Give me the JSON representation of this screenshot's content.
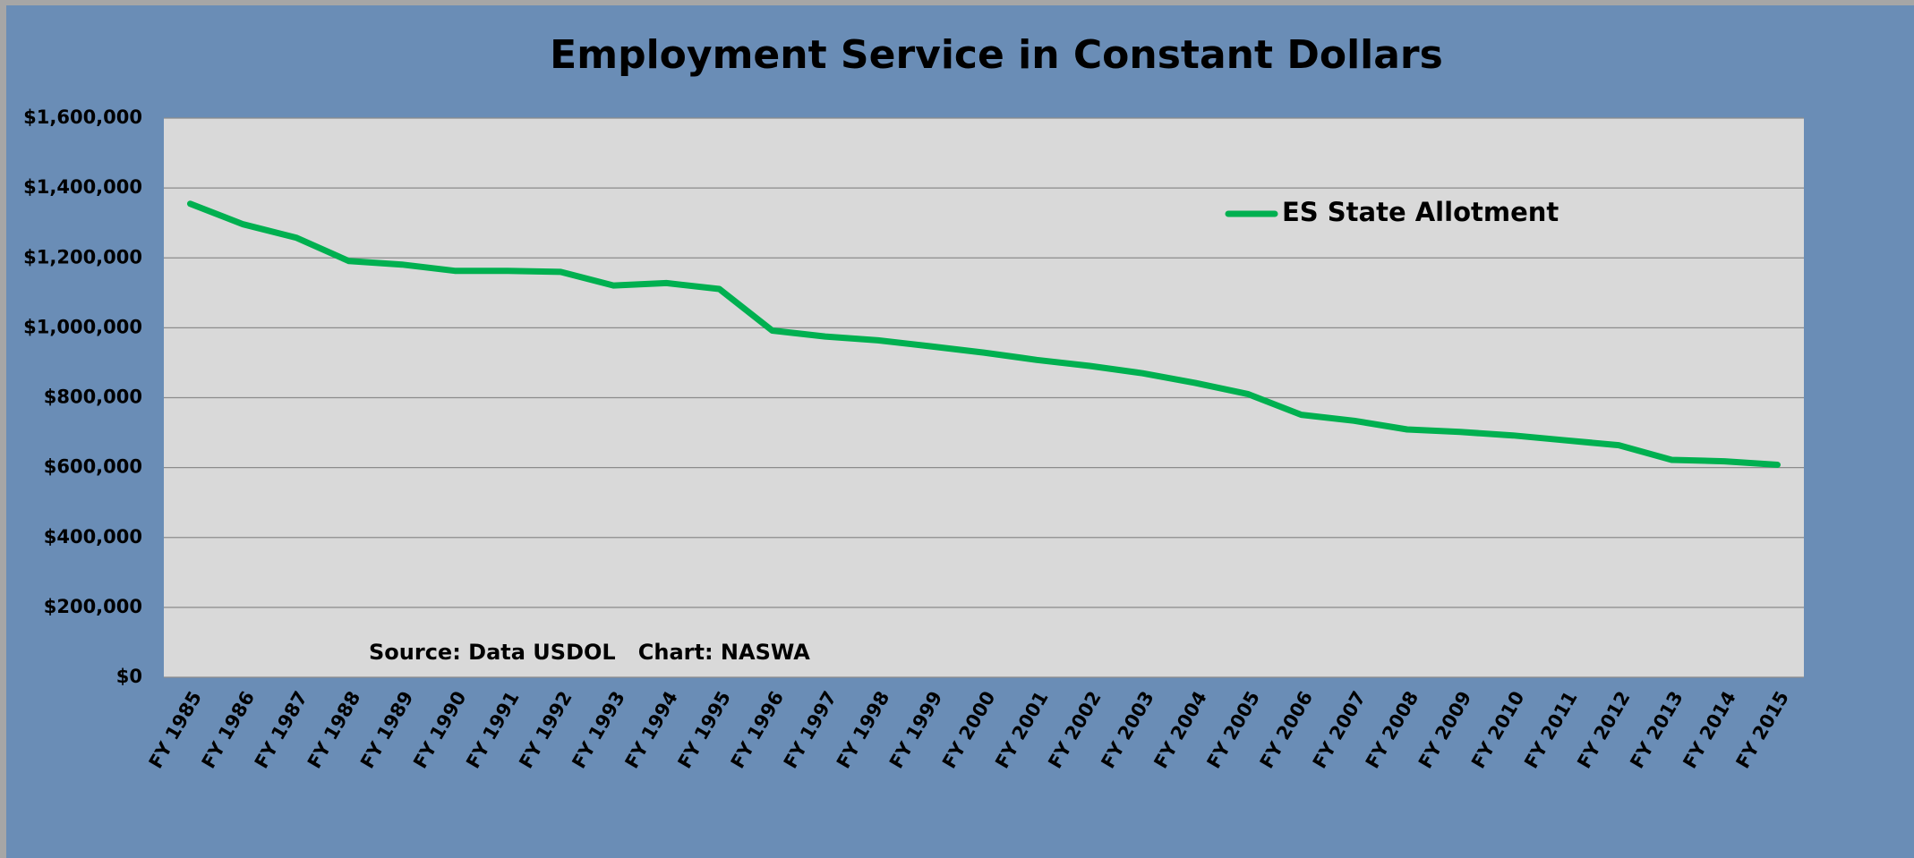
{
  "chart_data": {
    "type": "line",
    "title": "Employment Service in Constant Dollars",
    "annotation": "Source: Data USDOL   Chart: NASWA",
    "categories": [
      "FY 1985",
      "FY 1986",
      "FY 1987",
      "FY 1988",
      "FY 1989",
      "FY 1990",
      "FY 1991",
      "FY 1992",
      "FY 1993",
      "FY 1994",
      "FY 1995",
      "FY 1996",
      "FY 1997",
      "FY 1998",
      "FY 1999",
      "FY 2000",
      "FY 2001",
      "FY 2002",
      "FY 2003",
      "FY 2004",
      "FY 2005",
      "FY 2006",
      "FY 2007",
      "FY 2008",
      "FY 2009",
      "FY 2010",
      "FY 2011",
      "FY 2012",
      "FY 2013",
      "FY 2014",
      "FY 2015"
    ],
    "series": [
      {
        "name": "ES State Allotment",
        "color": "#00b050",
        "values": [
          1355000,
          1296000,
          1258000,
          1191000,
          1181000,
          1163000,
          1163000,
          1160000,
          1121000,
          1128000,
          1111000,
          992000,
          975000,
          964000,
          947000,
          929000,
          908000,
          891000,
          870000,
          842000,
          810000,
          751000,
          734000,
          709000,
          702000,
          692000,
          678000,
          664000,
          622000,
          618000,
          608000
        ]
      }
    ],
    "ylim": [
      0,
      1600000
    ],
    "yticks": [
      {
        "value": 0,
        "label": "$0"
      },
      {
        "value": 200000,
        "label": "$200,000"
      },
      {
        "value": 400000,
        "label": "$400,000"
      },
      {
        "value": 600000,
        "label": "$600,000"
      },
      {
        "value": 800000,
        "label": "$800,000"
      },
      {
        "value": 1000000,
        "label": "$1,000,000"
      },
      {
        "value": 1200000,
        "label": "$1,200,000"
      },
      {
        "value": 1400000,
        "label": "$1,400,000"
      },
      {
        "value": 1600000,
        "label": "$1,600,000"
      }
    ],
    "grid": true,
    "legend_loc": "upper right"
  }
}
